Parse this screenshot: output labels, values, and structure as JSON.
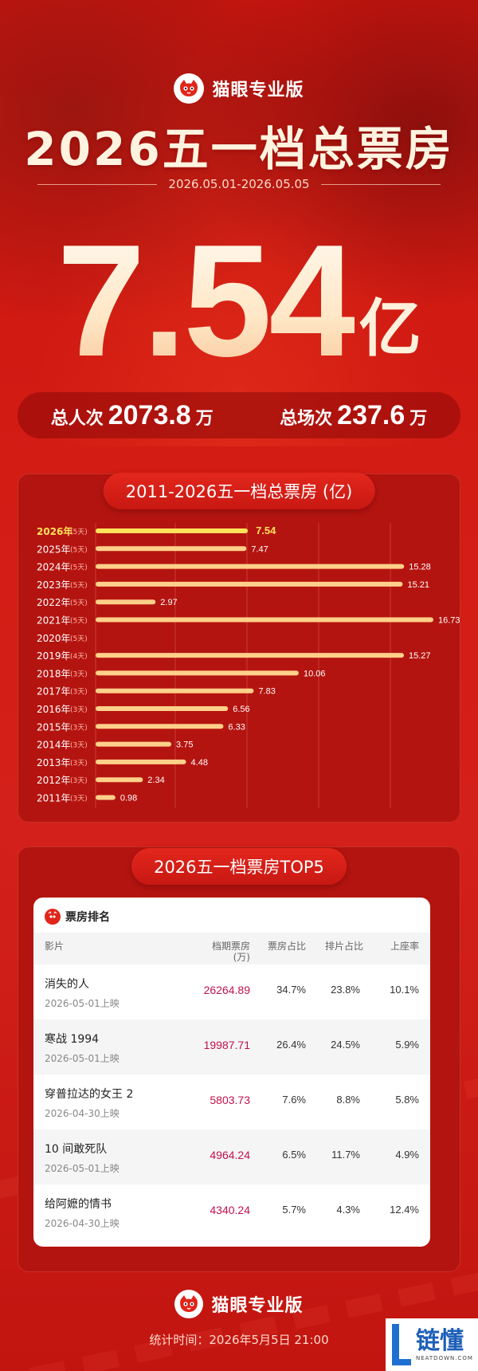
{
  "brand": {
    "name": "猫眼专业版"
  },
  "header": {
    "title": "2026五一档总票房",
    "date_range": "2026.05.01-2026.05.05",
    "total_value": "7.54",
    "total_unit": "亿"
  },
  "stats": {
    "admissions_label": "总人次",
    "admissions_value": "2073.8",
    "admissions_unit": "万",
    "screenings_label": "总场次",
    "screenings_value": "237.6",
    "screenings_unit": "万"
  },
  "history": {
    "title": "2011-2026五一档总票房 (亿)"
  },
  "chart_data": {
    "type": "bar",
    "orientation": "horizontal",
    "title": "2011-2026五一档总票房 (亿)",
    "categories": [
      "2026年",
      "2025年",
      "2024年",
      "2023年",
      "2022年",
      "2021年",
      "2020年",
      "2019年",
      "2018年",
      "2017年",
      "2016年",
      "2015年",
      "2014年",
      "2013年",
      "2012年",
      "2011年"
    ],
    "durations": [
      "(5天)",
      "(5天)",
      "(5天)",
      "(5天)",
      "(5天)",
      "(5天)",
      "(5天)",
      "(4天)",
      "(3天)",
      "(3天)",
      "(3天)",
      "(3天)",
      "(3天)",
      "(3天)",
      "(3天)",
      "(3天)"
    ],
    "values": [
      7.54,
      7.47,
      15.28,
      15.21,
      2.97,
      16.73,
      null,
      15.27,
      10.06,
      7.83,
      6.56,
      6.33,
      3.75,
      4.48,
      2.34,
      0.98
    ],
    "value_labels": [
      "7.54",
      "7.47",
      "15.28",
      "15.21",
      "2.97",
      "16.73",
      "",
      "15.27",
      "10.06",
      "7.83",
      "6.56",
      "6.33",
      "3.75",
      "4.48",
      "2.34",
      "0.98"
    ],
    "highlight_index": 0,
    "xlim": [
      0,
      16.73
    ],
    "grid": true,
    "colors": {
      "bar": "#ffd08a",
      "highlight": "#ffe25a",
      "label": "#ffffff",
      "highlight_label": "#ffe25a",
      "duration": "#ffb6a6"
    }
  },
  "top5": {
    "title": "2026五一档票房TOP5",
    "card_title": "票房排名",
    "columns": {
      "film": "影片",
      "box_office": "档期票房",
      "box_office_unit": "(万)",
      "box_share": "票房占比",
      "schedule_share": "排片占比",
      "seat_rate": "上座率"
    },
    "rows": [
      {
        "name": "消失的人",
        "date": "2026-05-01上映",
        "box_office": "26264.89",
        "box_share": "34.7%",
        "schedule_share": "23.8%",
        "seat_rate": "10.1%"
      },
      {
        "name": "寒战 1994",
        "date": "2026-05-01上映",
        "box_office": "19987.71",
        "box_share": "26.4%",
        "schedule_share": "24.5%",
        "seat_rate": "5.9%"
      },
      {
        "name": "穿普拉达的女王 2",
        "date": "2026-04-30上映",
        "box_office": "5803.73",
        "box_share": "7.6%",
        "schedule_share": "8.8%",
        "seat_rate": "5.8%"
      },
      {
        "name": "10 间敢死队",
        "date": "2026-05-01上映",
        "box_office": "4964.24",
        "box_share": "6.5%",
        "schedule_share": "11.7%",
        "seat_rate": "4.9%"
      },
      {
        "name": "给阿嬷的情书",
        "date": "2026-04-30上映",
        "box_office": "4340.24",
        "box_share": "5.7%",
        "schedule_share": "4.3%",
        "seat_rate": "12.4%"
      }
    ]
  },
  "footer": {
    "brand": "猫眼专业版",
    "stat_time": "统计时间：2026年5月5日  21:00"
  },
  "watermark": {
    "text": "链懂",
    "sub": "NEATDOWN.COM"
  },
  "icons": {
    "brand": "maoyan-cat-icon"
  }
}
